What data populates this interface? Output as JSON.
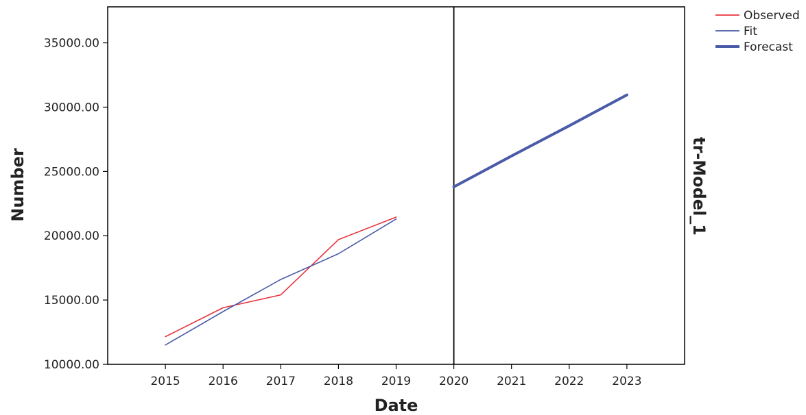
{
  "chart_data": {
    "type": "line",
    "xlabel": "Date",
    "ylabel": "Number",
    "panel_label": "tr-Model_1",
    "x_ticks": [
      2015,
      2016,
      2017,
      2018,
      2019,
      2020,
      2021,
      2022,
      2023
    ],
    "y_ticks": [
      "10000.00",
      "15000.00",
      "20000.00",
      "25000.00",
      "30000.00",
      "35000.00"
    ],
    "xlim": [
      2014,
      2024
    ],
    "ylim": [
      10000,
      37800
    ],
    "forecast_start": 2020,
    "grid": false,
    "legend_position": "top-right",
    "series": [
      {
        "name": "Observed",
        "color": "#e8323c",
        "style": "thin",
        "x": [
          2015,
          2016,
          2017,
          2018,
          2019
        ],
        "values": [
          12150,
          14400,
          15400,
          19700,
          21450
        ]
      },
      {
        "name": "Fit",
        "color": "#4a5ba8",
        "style": "thin",
        "x": [
          2015,
          2016,
          2017,
          2018,
          2019
        ],
        "values": [
          11500,
          14100,
          16600,
          18600,
          21300
        ]
      },
      {
        "name": "Forecast",
        "color": "#4a5ba8",
        "style": "thick",
        "x": [
          2020,
          2021,
          2022,
          2023
        ],
        "values": [
          23800,
          26200,
          28550,
          30950
        ]
      }
    ]
  }
}
